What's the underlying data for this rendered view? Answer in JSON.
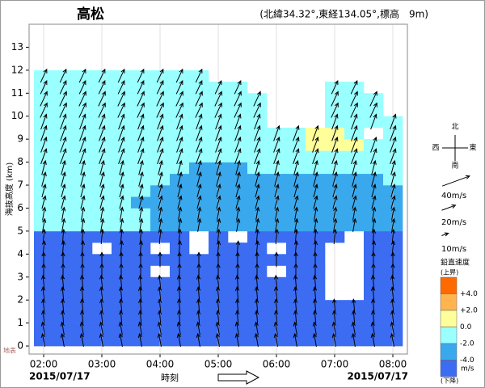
{
  "chart_data": {
    "type": "wind_profiler",
    "title": "高松",
    "location": "(北緯34.32°,東経134.05°,標高　9m)",
    "y_label": "海抜高度 (km)",
    "x_label": "時刻",
    "date_start": "2015/07/17",
    "date_end": "2015/07/17",
    "surface_label": "地表",
    "xlim": [
      105,
      495
    ],
    "xticks": [
      {
        "value": 120,
        "label": "02:00"
      },
      {
        "value": 180,
        "label": "03:00"
      },
      {
        "value": 240,
        "label": "04:00"
      },
      {
        "value": 300,
        "label": "05:00"
      },
      {
        "value": 360,
        "label": "06:00"
      },
      {
        "value": 420,
        "label": "07:00"
      },
      {
        "value": 480,
        "label": "08:00"
      }
    ],
    "ylim": [
      -0.35,
      14
    ],
    "yticks": [
      0,
      1,
      2,
      3,
      4,
      5,
      6,
      7,
      8,
      9,
      10,
      11,
      12,
      13
    ],
    "grid": true,
    "vertical_velocity": {
      "times": [
        120,
        140,
        160,
        180,
        200,
        220,
        240,
        260,
        280,
        300,
        320,
        340,
        360,
        380,
        400,
        420,
        440,
        460,
        480
      ],
      "heights": [
        0.25,
        0.75,
        1.25,
        1.75,
        2.25,
        2.75,
        3.25,
        3.75,
        4.25,
        4.75,
        5.25,
        5.75,
        6.25,
        6.75,
        7.25,
        7.75,
        8.25,
        8.75,
        9.25,
        9.75,
        10.25,
        10.75,
        11.25,
        11.75
      ],
      "values": [
        [
          -5,
          -5,
          -5,
          -5,
          -5,
          -5,
          -5,
          -5,
          -5,
          -5,
          -5,
          -5,
          -5,
          -5,
          -5,
          -5,
          -5,
          -5,
          -5
        ],
        [
          -5,
          -5,
          -5,
          -5,
          -5,
          -5,
          -5,
          -5,
          -5,
          -5,
          -5,
          -5,
          -5,
          -5,
          -5,
          -5,
          -5,
          -5,
          -5
        ],
        [
          -5,
          -5,
          -5,
          -5,
          -5,
          -5,
          -5,
          -5,
          -5,
          -5,
          -5,
          -5,
          -5,
          -5,
          -5,
          -5,
          -5,
          -5,
          -5
        ],
        [
          -5,
          -5,
          -5,
          -5,
          -5,
          -5,
          -5,
          -5,
          -5,
          -5,
          -5,
          -5,
          -5,
          -5,
          -5,
          -5,
          -5,
          -5,
          -5
        ],
        [
          -5,
          -5,
          -5,
          -5,
          -5,
          -5,
          -5,
          -5,
          -5,
          -5,
          -5,
          -5,
          -5,
          -5,
          -5,
          null,
          null,
          -5,
          -5
        ],
        [
          -5,
          -5,
          -5,
          -5,
          -5,
          -5,
          -5,
          -5,
          -5,
          -5,
          -5,
          -5,
          -5,
          -5,
          -5,
          null,
          null,
          -5,
          -5
        ],
        [
          -5,
          -5,
          -5,
          -5,
          -5,
          -5,
          null,
          -5,
          -5,
          -5,
          -5,
          -5,
          null,
          -5,
          -5,
          null,
          null,
          -5,
          -5
        ],
        [
          -5,
          -5,
          -5,
          -5,
          -5,
          -5,
          -5,
          -5,
          -5,
          -5,
          -5,
          -5,
          -5,
          -5,
          -5,
          null,
          null,
          -5,
          -5
        ],
        [
          -5,
          -5,
          -5,
          null,
          -5,
          -5,
          null,
          -5,
          null,
          -5,
          -5,
          -5,
          null,
          -5,
          -5,
          null,
          null,
          -5,
          -5
        ],
        [
          -5,
          -5,
          -5,
          -5,
          -5,
          -5,
          -5,
          -5,
          null,
          -5,
          null,
          -5,
          -5,
          -5,
          -5,
          -5,
          null,
          -5,
          -5
        ],
        [
          -1,
          -1,
          -1,
          -1,
          -1,
          -1,
          -3,
          -3,
          -3,
          -3,
          -3,
          -3,
          -3,
          -3,
          -3,
          -3,
          -3,
          -3,
          -3
        ],
        [
          -1,
          -1,
          -1,
          -1,
          -1,
          -1,
          -3,
          -3,
          -3,
          -3,
          -3,
          -3,
          -3,
          -3,
          -3,
          -3,
          -3,
          -3,
          -3
        ],
        [
          -1,
          -1,
          -1,
          -1,
          -1,
          -3,
          -3,
          -3,
          -3,
          -3,
          -3,
          -3,
          -3,
          -3,
          -3,
          -3,
          -3,
          -3,
          -3
        ],
        [
          -1,
          -1,
          -1,
          -1,
          -1,
          -1,
          -3,
          -3,
          -3,
          -3,
          -3,
          -3,
          -3,
          -3,
          -3,
          -3,
          -3,
          -3,
          -3
        ],
        [
          -1,
          -1,
          -1,
          -1,
          -1,
          -1,
          -1,
          -3,
          -3,
          -3,
          -3,
          -3,
          -3,
          -3,
          -3,
          -3,
          -3,
          -3,
          -1
        ],
        [
          -1,
          -1,
          -1,
          -1,
          -1,
          -1,
          -1,
          -1,
          -3,
          -3,
          -3,
          -1,
          -1,
          -1,
          -1,
          -1,
          -1,
          -1,
          -1
        ],
        [
          -1,
          -1,
          -1,
          -1,
          -1,
          -1,
          -1,
          -1,
          -1,
          -1,
          -1,
          -1,
          -1,
          -1,
          -1,
          -1,
          -1,
          -1,
          -1
        ],
        [
          -1,
          -1,
          -1,
          -1,
          -1,
          -1,
          -1,
          -1,
          -1,
          -1,
          -1,
          -1,
          -1,
          -1,
          1,
          1,
          1,
          -1,
          -1
        ],
        [
          -1,
          -1,
          -1,
          -1,
          -1,
          -1,
          -1,
          -1,
          -1,
          -1,
          -1,
          -1,
          -1,
          -1,
          1,
          1,
          -1,
          null,
          -1
        ],
        [
          -1,
          -1,
          -1,
          -1,
          -1,
          -1,
          -1,
          -1,
          -1,
          -1,
          -1,
          -1,
          null,
          null,
          null,
          -1,
          -1,
          -1,
          -1
        ],
        [
          -1,
          -1,
          -1,
          -1,
          -1,
          -1,
          -1,
          -1,
          -1,
          -1,
          -1,
          -1,
          null,
          null,
          null,
          -1,
          -1,
          -1,
          null
        ],
        [
          -1,
          -1,
          -1,
          -1,
          -1,
          -1,
          -1,
          -1,
          -1,
          -1,
          -1,
          -1,
          null,
          null,
          null,
          -1,
          -1,
          -1,
          null
        ],
        [
          -1,
          -1,
          -1,
          -1,
          -1,
          -1,
          -1,
          -1,
          -1,
          -1,
          -1,
          null,
          null,
          null,
          null,
          -1,
          -1,
          null,
          null
        ],
        [
          -1,
          -1,
          -1,
          -1,
          -1,
          -1,
          -1,
          -1,
          -1,
          null,
          null,
          null,
          null,
          null,
          null,
          null,
          null,
          null,
          null
        ]
      ]
    },
    "wind": {
      "heights": [
        0.5,
        1.5,
        2.5,
        3.5,
        4.5,
        5.5,
        6.5,
        7.5,
        8.5,
        9.5,
        10.5,
        11.5
      ],
      "direction": [
        350,
        355,
        355,
        0,
        5,
        10,
        15,
        15,
        20,
        20,
        25,
        25
      ],
      "speed": [
        18,
        18,
        20,
        20,
        20,
        18,
        18,
        20,
        22,
        22,
        22,
        20
      ]
    },
    "wind_scale": [
      {
        "value": 40,
        "label": "40m/s"
      },
      {
        "value": 20,
        "label": "20m/s"
      },
      {
        "value": 10,
        "label": "10m/s"
      }
    ],
    "compass": {
      "north": "北",
      "south": "南",
      "east": "東",
      "west": "西"
    },
    "legend": {
      "title": "鉛直速度",
      "upper": "(上昇)",
      "lower": "(下降)",
      "unit": "m/s",
      "colors": [
        "#ff6a00",
        "#ffb450",
        "#ffff99",
        "#99ffff",
        "#3aa8ec",
        "#3b6cf2"
      ],
      "bounds": [
        {
          "value": 4,
          "label": "+4.0"
        },
        {
          "value": 2,
          "label": "+2.0"
        },
        {
          "value": 0,
          "label": "0.0"
        },
        {
          "value": -2,
          "label": "-2.0"
        },
        {
          "value": -4,
          "label": "-4.0"
        }
      ]
    }
  }
}
